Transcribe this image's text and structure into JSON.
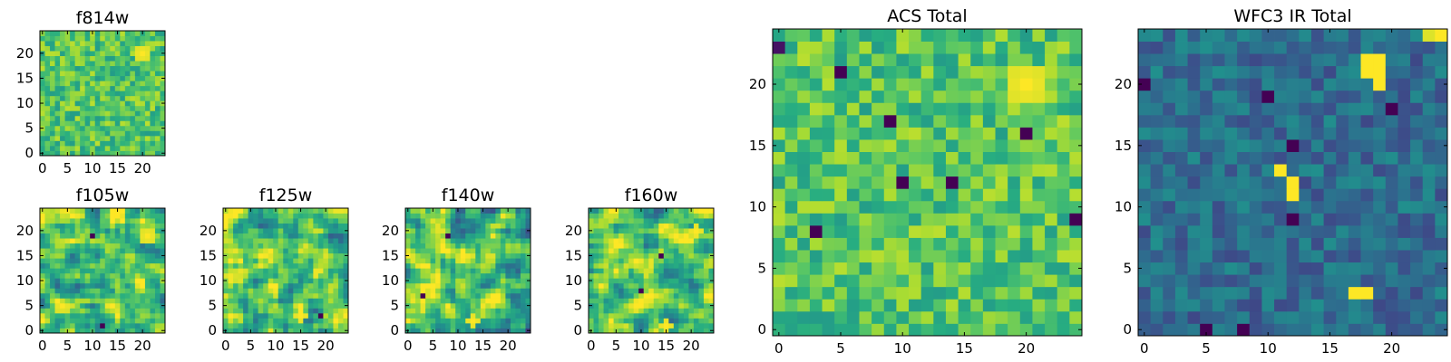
{
  "chart_data": [
    {
      "type": "heatmap",
      "title": "f814w",
      "xlabel": "",
      "ylabel": "",
      "grid_size": 25,
      "xlim": [
        -0.5,
        24.5
      ],
      "ylim": [
        -0.5,
        24.5
      ],
      "x_ticks": [
        0,
        5,
        10,
        15,
        20
      ],
      "y_ticks": [
        0,
        5,
        10,
        15,
        20
      ],
      "x_tick_labels": [
        "0",
        "5",
        "10",
        "15",
        "20"
      ],
      "y_tick_labels": [
        "0",
        "5",
        "10",
        "15",
        "20"
      ],
      "colormap": "viridis",
      "value_range": [
        0,
        1
      ],
      "texture": "fine",
      "seed": 11,
      "hotspots": [
        {
          "x": 20,
          "y": 20,
          "r": 1.8,
          "v": 1.0
        }
      ],
      "lows": []
    },
    {
      "type": "heatmap",
      "title": "f105w",
      "xlabel": "",
      "ylabel": "",
      "grid_size": 25,
      "xlim": [
        -0.5,
        24.5
      ],
      "ylim": [
        -0.5,
        24.5
      ],
      "x_ticks": [
        0,
        5,
        10,
        15,
        20
      ],
      "y_ticks": [
        0,
        5,
        10,
        15,
        20
      ],
      "x_tick_labels": [
        "0",
        "5",
        "10",
        "15",
        "20"
      ],
      "y_tick_labels": [
        "0",
        "5",
        "10",
        "15",
        "20"
      ],
      "colormap": "viridis",
      "value_range": [
        0,
        1
      ],
      "texture": "smooth",
      "seed": 23,
      "hotspots": [
        {
          "x": 21,
          "y": 19,
          "r": 1.5,
          "v": 1.0
        }
      ],
      "lows": [
        {
          "x": 10,
          "y": 19,
          "v": 0.0
        },
        {
          "x": 12,
          "y": 1,
          "v": 0.0
        }
      ]
    },
    {
      "type": "heatmap",
      "title": "f125w",
      "xlabel": "",
      "ylabel": "",
      "grid_size": 25,
      "xlim": [
        -0.5,
        24.5
      ],
      "ylim": [
        -0.5,
        24.5
      ],
      "x_ticks": [
        0,
        5,
        10,
        15,
        20
      ],
      "y_ticks": [
        0,
        5,
        10,
        15,
        20
      ],
      "x_tick_labels": [
        "0",
        "5",
        "10",
        "15",
        "20"
      ],
      "y_tick_labels": [
        "0",
        "5",
        "10",
        "15",
        "20"
      ],
      "colormap": "viridis",
      "value_range": [
        0,
        1
      ],
      "texture": "smooth",
      "seed": 37,
      "hotspots": [
        {
          "x": 15,
          "y": 3,
          "r": 1.2,
          "v": 1.0
        }
      ],
      "lows": [
        {
          "x": 19,
          "y": 3,
          "v": 0.0
        }
      ]
    },
    {
      "type": "heatmap",
      "title": "f140w",
      "xlabel": "",
      "ylabel": "",
      "grid_size": 25,
      "xlim": [
        -0.5,
        24.5
      ],
      "ylim": [
        -0.5,
        24.5
      ],
      "x_ticks": [
        0,
        5,
        10,
        15,
        20
      ],
      "y_ticks": [
        0,
        5,
        10,
        15,
        20
      ],
      "x_tick_labels": [
        "0",
        "5",
        "10",
        "15",
        "20"
      ],
      "y_tick_labels": [
        "0",
        "5",
        "10",
        "15",
        "20"
      ],
      "colormap": "viridis",
      "value_range": [
        0,
        1
      ],
      "texture": "smooth",
      "seed": 53,
      "hotspots": [
        {
          "x": 13,
          "y": 2,
          "r": 1.0,
          "v": 1.0
        }
      ],
      "lows": [
        {
          "x": 8,
          "y": 19,
          "v": 0.0
        },
        {
          "x": 3,
          "y": 7,
          "v": 0.0
        }
      ]
    },
    {
      "type": "heatmap",
      "title": "f160w",
      "xlabel": "",
      "ylabel": "",
      "grid_size": 25,
      "xlim": [
        -0.5,
        24.5
      ],
      "ylim": [
        -0.5,
        24.5
      ],
      "x_ticks": [
        0,
        5,
        10,
        15,
        20
      ],
      "y_ticks": [
        0,
        5,
        10,
        15,
        20
      ],
      "x_tick_labels": [
        "0",
        "5",
        "10",
        "15",
        "20"
      ],
      "y_tick_labels": [
        "0",
        "5",
        "10",
        "15",
        "20"
      ],
      "colormap": "viridis",
      "value_range": [
        0,
        1
      ],
      "texture": "smooth",
      "seed": 71,
      "hotspots": [
        {
          "x": 21,
          "y": 20,
          "r": 1.4,
          "v": 1.0
        },
        {
          "x": 15,
          "y": 1,
          "r": 1.2,
          "v": 1.0
        }
      ],
      "lows": [
        {
          "x": 14,
          "y": 15,
          "v": 0.0
        },
        {
          "x": 10,
          "y": 8,
          "v": 0.0
        }
      ]
    },
    {
      "type": "heatmap",
      "title": "ACS Total",
      "xlabel": "",
      "ylabel": "",
      "grid_size": 25,
      "xlim": [
        -0.5,
        24.5
      ],
      "ylim": [
        -0.5,
        24.5
      ],
      "x_ticks": [
        0,
        5,
        10,
        15,
        20
      ],
      "y_ticks": [
        0,
        5,
        10,
        15,
        20
      ],
      "x_tick_labels": [
        "0",
        "5",
        "10",
        "15",
        "20"
      ],
      "y_tick_labels": [
        "0",
        "5",
        "10",
        "15",
        "20"
      ],
      "colormap": "viridis",
      "value_range": [
        0,
        1
      ],
      "texture": "fine",
      "seed": 97,
      "hotspots": [
        {
          "x": 20,
          "y": 20,
          "r": 1.9,
          "v": 1.0
        }
      ],
      "lows": [
        {
          "x": 5,
          "y": 21,
          "v": 0.0
        },
        {
          "x": 9,
          "y": 17,
          "v": 0.0
        },
        {
          "x": 10,
          "y": 12,
          "v": 0.0
        },
        {
          "x": 14,
          "y": 12,
          "v": 0.0
        },
        {
          "x": 3,
          "y": 8,
          "v": 0.0
        },
        {
          "x": 20,
          "y": 16,
          "v": 0.0
        },
        {
          "x": 24,
          "y": 9,
          "v": 0.0
        },
        {
          "x": 0,
          "y": 23,
          "v": 0.05
        }
      ]
    },
    {
      "type": "heatmap",
      "title": "WFC3 IR Total",
      "xlabel": "",
      "ylabel": "",
      "grid_size": 25,
      "xlim": [
        -0.5,
        24.5
      ],
      "ylim": [
        -0.5,
        24.5
      ],
      "x_ticks": [
        0,
        5,
        10,
        15,
        20
      ],
      "y_ticks": [
        0,
        5,
        10,
        15,
        20
      ],
      "x_tick_labels": [
        "0",
        "5",
        "10",
        "15",
        "20"
      ],
      "y_tick_labels": [
        "0",
        "5",
        "10",
        "15",
        "20"
      ],
      "colormap": "viridis",
      "value_range": [
        0,
        1
      ],
      "texture": "dim",
      "seed": 131,
      "hotspots": [
        {
          "x": 18,
          "y": 22,
          "r": 0,
          "v": 1.0
        },
        {
          "x": 19,
          "y": 22,
          "r": 0,
          "v": 1.0
        },
        {
          "x": 18,
          "y": 21,
          "r": 0,
          "v": 1.0
        },
        {
          "x": 19,
          "y": 21,
          "r": 0,
          "v": 1.0
        },
        {
          "x": 19,
          "y": 20,
          "r": 0,
          "v": 1.0
        },
        {
          "x": 11,
          "y": 13,
          "r": 0,
          "v": 1.0
        },
        {
          "x": 12,
          "y": 12,
          "r": 0,
          "v": 1.0
        },
        {
          "x": 12,
          "y": 11,
          "r": 0,
          "v": 1.0
        },
        {
          "x": 17,
          "y": 3,
          "r": 0,
          "v": 1.0
        },
        {
          "x": 18,
          "y": 3,
          "r": 0,
          "v": 1.0
        },
        {
          "x": 24,
          "y": 24,
          "r": 0,
          "v": 1.0
        },
        {
          "x": 23,
          "y": 24,
          "r": 0,
          "v": 0.95
        }
      ],
      "lows": [
        {
          "x": 0,
          "y": 20,
          "v": 0.0
        },
        {
          "x": 10,
          "y": 19,
          "v": 0.0
        },
        {
          "x": 5,
          "y": 0,
          "v": 0.0
        },
        {
          "x": 12,
          "y": 9,
          "v": 0.0
        },
        {
          "x": 20,
          "y": 18,
          "v": 0.0
        },
        {
          "x": 8,
          "y": 0,
          "v": 0.0
        },
        {
          "x": 12,
          "y": 15,
          "v": 0.0
        }
      ]
    }
  ]
}
